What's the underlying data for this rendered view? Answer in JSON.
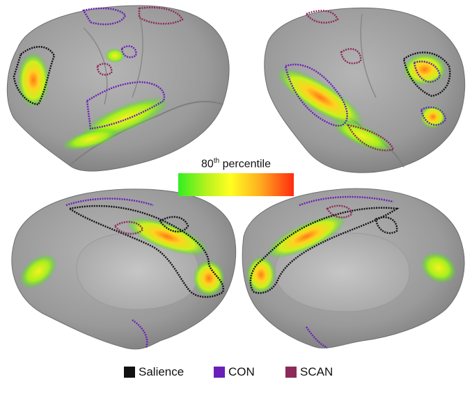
{
  "colorbar": {
    "label_number": "80",
    "label_suffix": "th",
    "label_rest": " percentile",
    "colors": [
      "#33ee22",
      "#ffff22",
      "#ff2a10"
    ]
  },
  "legend": [
    {
      "label": "Salience",
      "color": "#111111"
    },
    {
      "label": "CON",
      "color": "#6a1fb8"
    },
    {
      "label": "SCAN",
      "color": "#8c2a5a"
    }
  ]
}
